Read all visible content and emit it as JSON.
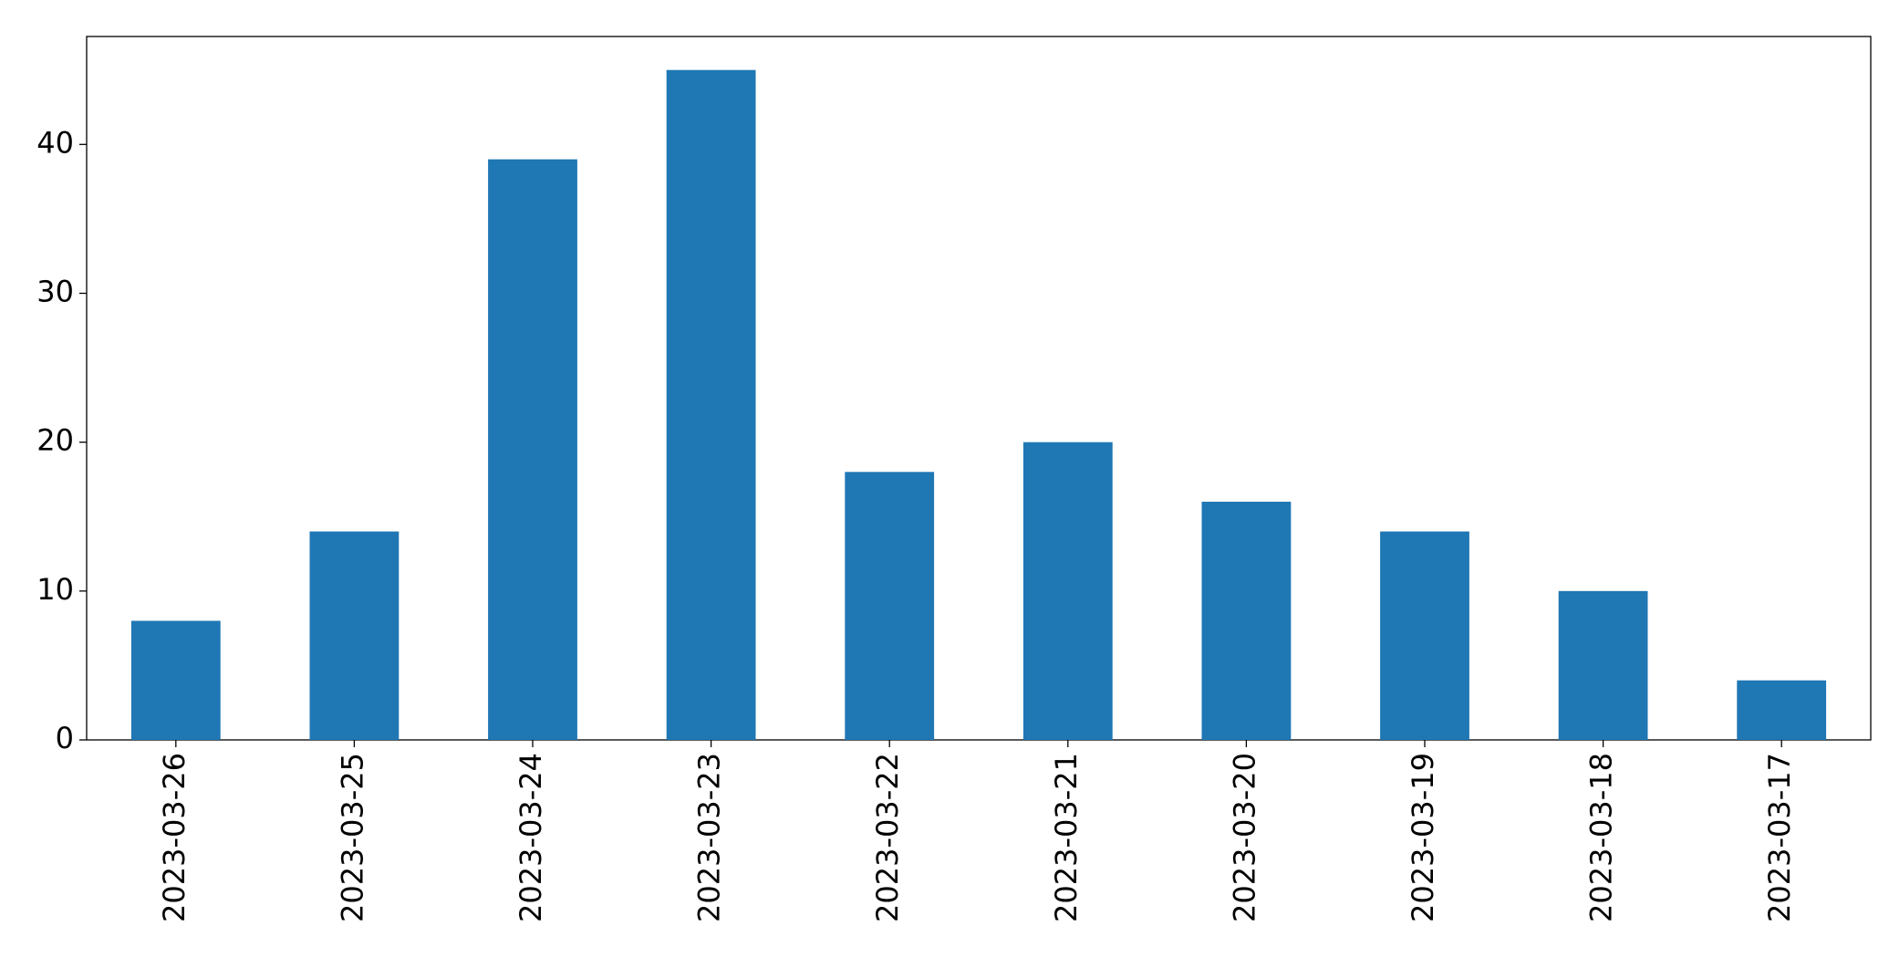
{
  "chart_data": {
    "type": "bar",
    "categories": [
      "2023-03-26",
      "2023-03-25",
      "2023-03-24",
      "2023-03-23",
      "2023-03-22",
      "2023-03-21",
      "2023-03-20",
      "2023-03-19",
      "2023-03-18",
      "2023-03-17"
    ],
    "values": [
      8,
      14,
      39,
      45,
      18,
      20,
      16,
      14,
      10,
      4
    ],
    "color": "#1f77b4",
    "ylim": [
      0,
      47.25
    ],
    "yticks": [
      0,
      10,
      20,
      30,
      40
    ],
    "grid": false
  }
}
